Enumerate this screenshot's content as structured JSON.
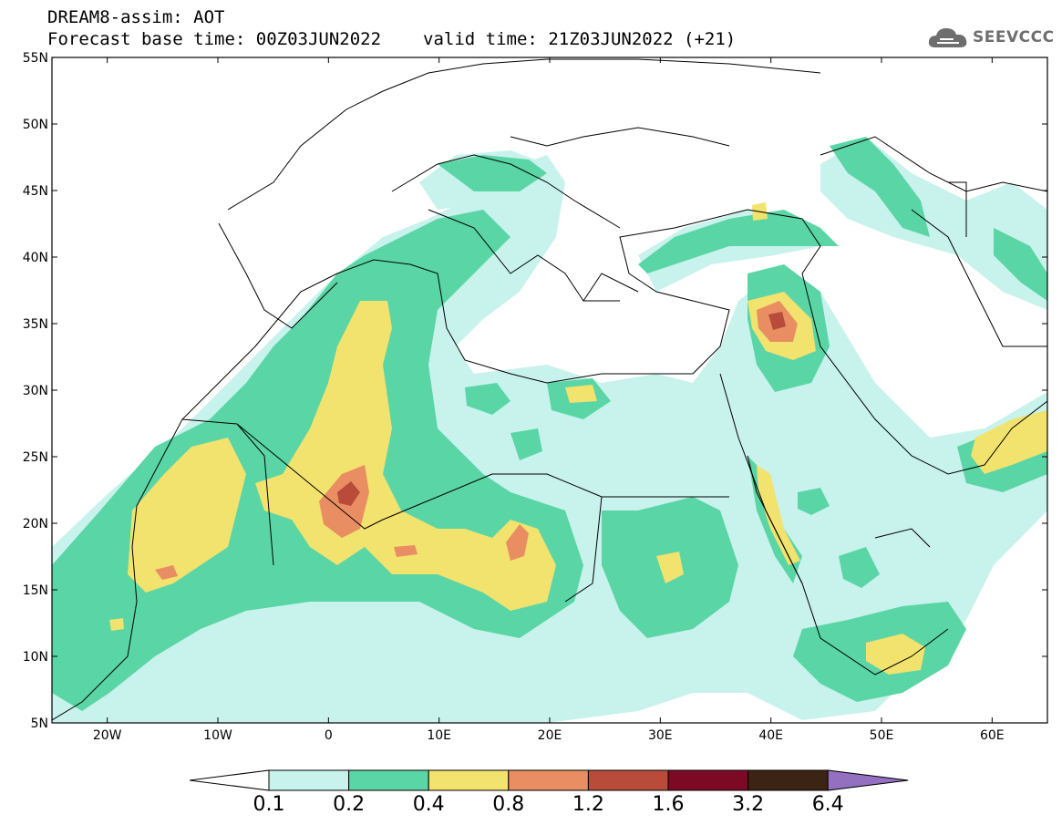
{
  "header": {
    "line1": "DREAM8-assim: AOT",
    "base_time": "Forecast base time: 00Z03JUN2022",
    "valid_time": "valid time: 21Z03JUN2022 (+21)"
  },
  "logo": {
    "text": "SEEVCCC",
    "icon": "cloud-icon"
  },
  "map": {
    "lon_range": [
      -25,
      65
    ],
    "lat_range": [
      5,
      55
    ],
    "lat_ticks": [
      "5N",
      "10N",
      "15N",
      "20N",
      "25N",
      "30N",
      "35N",
      "40N",
      "45N",
      "50N",
      "55N"
    ],
    "lon_ticks": [
      "20W",
      "10W",
      "0",
      "10E",
      "20E",
      "30E",
      "40E",
      "50E",
      "60E"
    ]
  },
  "colorbar": {
    "labels": [
      "0.1",
      "0.2",
      "0.4",
      "0.8",
      "1.2",
      "1.6",
      "3.2",
      "6.4"
    ],
    "colors": [
      "#c8f2ec",
      "#5ad5a5",
      "#f2e26e",
      "#e98d63",
      "#b84b3a",
      "#7d0a24",
      "#3c2414",
      "#9370c0"
    ]
  }
}
